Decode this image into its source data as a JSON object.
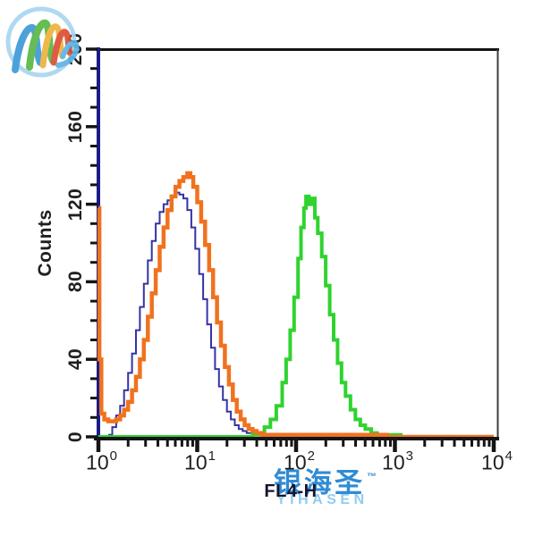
{
  "axes": {
    "x": {
      "label": "FL4-H",
      "scale": "log",
      "tick_base": "10",
      "tick_exponents": [
        "0",
        "1",
        "2",
        "3",
        "4"
      ],
      "range_log10": [
        0,
        4
      ]
    },
    "y": {
      "label": "Counts",
      "ticks": [
        "0",
        "40",
        "80",
        "120",
        "160",
        "200"
      ],
      "major_values": [
        0,
        40,
        80,
        120,
        160,
        200
      ],
      "minor_step": 10,
      "range": [
        0,
        200
      ]
    }
  },
  "watermark": {
    "brand_cn": "银海圣",
    "tm": "™",
    "brand_en": "YIHASEN",
    "logo_colors": [
      "#3e9ad8",
      "#58b845",
      "#eeb33c",
      "#dd4f33",
      "#5db4e6"
    ],
    "ring_color": "#a9d6f0",
    "text_color": "#1e82d2"
  },
  "colors": {
    "y_axis": "#1c1c87",
    "frame_black": "#141414",
    "frame_right": "#3c3c3c",
    "tick_black": "#141414",
    "blue_curve": "#3434a4",
    "orange_curve": "#f0721f",
    "green_curve": "#2fd32f"
  },
  "chart_data": {
    "type": "line",
    "subtype": "flow-cytometry-step-histogram",
    "title": "",
    "xlabel": "FL4-H",
    "ylabel": "Counts",
    "x_is_log10": true,
    "xlim_log10": [
      0,
      4
    ],
    "ylim": [
      0,
      200
    ],
    "grid": false,
    "legend": "none",
    "series": [
      {
        "name": "blue",
        "color": "#3434a4",
        "width": 2,
        "points": [
          [
            0.1,
            1
          ],
          [
            0.14,
            5
          ],
          [
            0.18,
            11
          ],
          [
            0.22,
            16
          ],
          [
            0.26,
            24
          ],
          [
            0.3,
            33
          ],
          [
            0.34,
            43
          ],
          [
            0.38,
            55
          ],
          [
            0.42,
            67
          ],
          [
            0.46,
            79
          ],
          [
            0.5,
            91
          ],
          [
            0.54,
            101
          ],
          [
            0.58,
            110
          ],
          [
            0.62,
            116
          ],
          [
            0.66,
            120
          ],
          [
            0.7,
            122
          ],
          [
            0.74,
            124
          ],
          [
            0.78,
            126
          ],
          [
            0.82,
            125
          ],
          [
            0.86,
            123
          ],
          [
            0.9,
            117
          ],
          [
            0.94,
            108
          ],
          [
            0.98,
            97
          ],
          [
            1.02,
            84
          ],
          [
            1.06,
            71
          ],
          [
            1.1,
            58
          ],
          [
            1.14,
            46
          ],
          [
            1.18,
            35
          ],
          [
            1.22,
            26
          ],
          [
            1.26,
            19
          ],
          [
            1.3,
            13
          ],
          [
            1.34,
            9
          ],
          [
            1.38,
            6
          ],
          [
            1.42,
            4
          ],
          [
            1.46,
            3
          ],
          [
            1.5,
            2
          ],
          [
            1.56,
            1
          ],
          [
            1.7,
            1
          ],
          [
            1.9,
            1
          ],
          [
            2.1,
            0
          ],
          [
            4.0,
            0
          ]
        ]
      },
      {
        "name": "green",
        "color": "#2fd32f",
        "width": 4,
        "points": [
          [
            0.0,
            0
          ],
          [
            1.5,
            0
          ],
          [
            1.56,
            1
          ],
          [
            1.62,
            2
          ],
          [
            1.68,
            5
          ],
          [
            1.74,
            9
          ],
          [
            1.8,
            16
          ],
          [
            1.86,
            28
          ],
          [
            1.9,
            40
          ],
          [
            1.94,
            55
          ],
          [
            1.98,
            72
          ],
          [
            2.02,
            92
          ],
          [
            2.05,
            108
          ],
          [
            2.08,
            118
          ],
          [
            2.1,
            124
          ],
          [
            2.13,
            120
          ],
          [
            2.16,
            123
          ],
          [
            2.19,
            113
          ],
          [
            2.22,
            105
          ],
          [
            2.26,
            93
          ],
          [
            2.3,
            78
          ],
          [
            2.34,
            63
          ],
          [
            2.38,
            50
          ],
          [
            2.42,
            38
          ],
          [
            2.46,
            28
          ],
          [
            2.5,
            21
          ],
          [
            2.55,
            14
          ],
          [
            2.6,
            9
          ],
          [
            2.65,
            6
          ],
          [
            2.7,
            4
          ],
          [
            2.76,
            2
          ],
          [
            2.82,
            1
          ],
          [
            2.9,
            1
          ],
          [
            3.0,
            1
          ],
          [
            3.06,
            0
          ],
          [
            4.0,
            0
          ]
        ]
      },
      {
        "name": "orange",
        "color": "#f0721f",
        "width": 4.5,
        "points": [
          [
            0.0,
            118
          ],
          [
            0.01,
            40
          ],
          [
            0.03,
            12
          ],
          [
            0.06,
            9
          ],
          [
            0.1,
            8
          ],
          [
            0.14,
            8
          ],
          [
            0.18,
            9
          ],
          [
            0.22,
            11
          ],
          [
            0.26,
            14
          ],
          [
            0.3,
            18
          ],
          [
            0.34,
            24
          ],
          [
            0.38,
            31
          ],
          [
            0.42,
            40
          ],
          [
            0.46,
            50
          ],
          [
            0.5,
            62
          ],
          [
            0.54,
            74
          ],
          [
            0.58,
            86
          ],
          [
            0.62,
            98
          ],
          [
            0.66,
            108
          ],
          [
            0.7,
            117
          ],
          [
            0.74,
            124
          ],
          [
            0.78,
            129
          ],
          [
            0.82,
            132
          ],
          [
            0.86,
            134
          ],
          [
            0.9,
            136
          ],
          [
            0.93,
            134
          ],
          [
            0.96,
            129
          ],
          [
            1.0,
            121
          ],
          [
            1.04,
            111
          ],
          [
            1.08,
            99
          ],
          [
            1.12,
            86
          ],
          [
            1.16,
            72
          ],
          [
            1.2,
            59
          ],
          [
            1.24,
            47
          ],
          [
            1.28,
            36
          ],
          [
            1.32,
            27
          ],
          [
            1.36,
            19
          ],
          [
            1.4,
            13
          ],
          [
            1.44,
            9
          ],
          [
            1.48,
            6
          ],
          [
            1.52,
            4
          ],
          [
            1.56,
            3
          ],
          [
            1.6,
            2
          ],
          [
            1.66,
            1
          ],
          [
            1.8,
            1
          ],
          [
            2.2,
            1
          ],
          [
            2.6,
            1
          ],
          [
            2.88,
            1
          ],
          [
            2.92,
            0
          ],
          [
            4.0,
            0
          ]
        ]
      }
    ]
  }
}
